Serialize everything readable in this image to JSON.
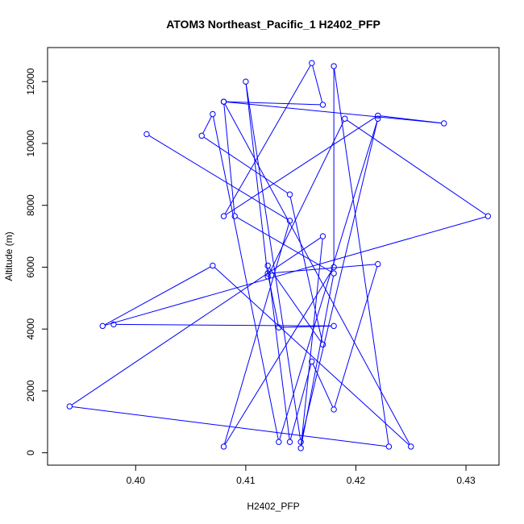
{
  "chart_data": {
    "type": "line",
    "title": "ATOM3 Northeast_Pacific_1 H2402_PFP",
    "xlabel": "H2402_PFP",
    "ylabel": "Altitude (m)",
    "xlim": [
      0.392,
      0.433
    ],
    "ylim": [
      -400,
      13100
    ],
    "xticks": [
      0.4,
      0.41,
      0.42,
      0.43
    ],
    "xtick_labels": [
      "0.40",
      "0.41",
      "0.42",
      "0.43"
    ],
    "yticks": [
      0,
      2000,
      4000,
      6000,
      8000,
      10000,
      12000
    ],
    "ytick_labels": [
      "0",
      "2000",
      "4000",
      "6000",
      "8000",
      "10000",
      "12000"
    ],
    "grid": false,
    "color": "#0000ff",
    "series": [
      {
        "x": [
          0.401,
          0.414,
          0.408,
          0.418,
          0.418,
          0.423,
          0.394,
          0.417,
          0.415,
          0.418,
          0.409,
          0.408,
          0.417,
          0.416,
          0.408,
          0.422,
          0.428,
          0.408,
          0.425,
          0.407,
          0.397,
          0.432,
          0.419,
          0.412,
          0.41,
          0.415,
          0.422,
          0.413,
          0.407,
          0.406,
          0.414,
          0.417,
          0.412,
          0.414,
          0.416,
          0.418,
          0.422,
          0.412,
          0.413,
          0.418,
          0.398
        ],
        "y": [
          10300,
          7500,
          200,
          6000,
          12500,
          200,
          1500,
          7000,
          150,
          5800,
          7650,
          11350,
          11250,
          12600,
          7650,
          10900,
          10650,
          11350,
          200,
          6050,
          4100,
          7650,
          10800,
          5700,
          12000,
          350,
          10800,
          350,
          10950,
          10250,
          8350,
          3500,
          6050,
          350,
          2950,
          1400,
          6100,
          5800,
          4050,
          4100,
          4150
        ]
      }
    ]
  }
}
